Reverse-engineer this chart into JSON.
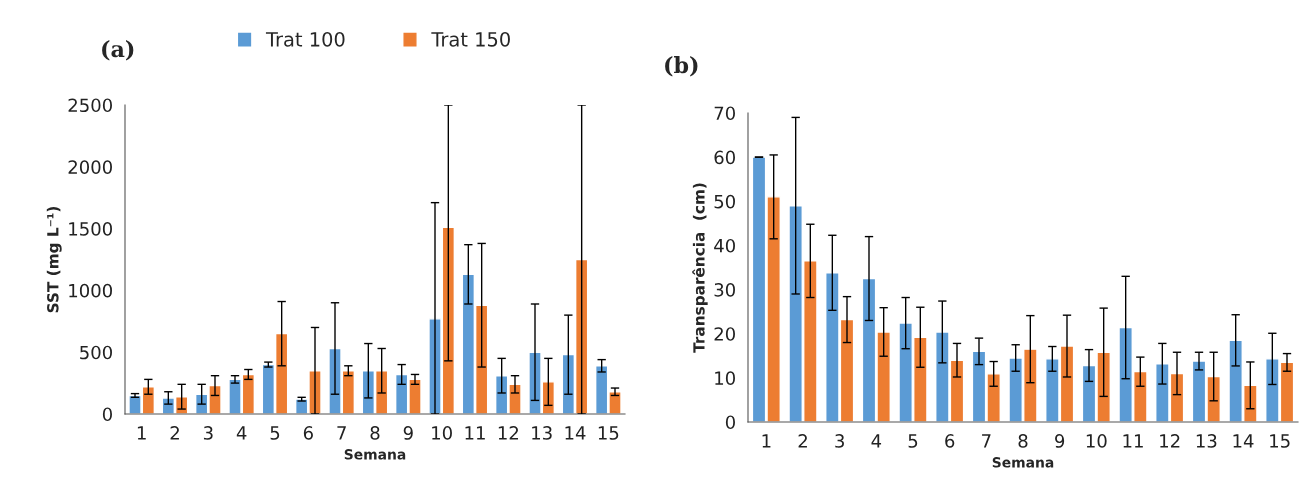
{
  "chart_data": [
    {
      "type": "bar",
      "ylabel": "SST (mg L⁻¹)",
      "xlabel": "Semana",
      "annotations": [
        "(a)"
      ],
      "legend": "top",
      "categories": [
        "1",
        "2",
        "3",
        "4",
        "5",
        "6",
        "7",
        "8",
        "9",
        "10",
        "11",
        "12",
        "13",
        "14",
        "15"
      ],
      "ylim": [
        0,
        2500
      ],
      "yticks": [
        0,
        500,
        1000,
        1500,
        2000,
        2500
      ],
      "series": [
        {
          "name": "Trat 100",
          "color": "#5b9bd5",
          "values": [
            150,
            130,
            160,
            280,
            400,
            120,
            530,
            350,
            320,
            770,
            1130,
            310,
            500,
            480,
            390
          ],
          "errors": [
            15,
            50,
            80,
            30,
            20,
            15,
            370,
            220,
            80,
            [
              0,
              1710
            ],
            240,
            140,
            390,
            320,
            50
          ]
        },
        {
          "name": "Trat 150",
          "color": "#ed7d31",
          "values": [
            220,
            140,
            230,
            320,
            650,
            350,
            350,
            350,
            280,
            1510,
            880,
            240,
            260,
            1250,
            180
          ],
          "errors": [
            60,
            100,
            80,
            40,
            260,
            350,
            40,
            180,
            40,
            [
              430,
              2500
            ],
            500,
            70,
            190,
            [
              0,
              2500
            ],
            30
          ]
        }
      ]
    },
    {
      "type": "bar",
      "ylabel": "Transparência  (cm)",
      "xlabel": "Semana",
      "annotations": [
        "(b)"
      ],
      "categories": [
        "1",
        "2",
        "3",
        "4",
        "5",
        "6",
        "7",
        "8",
        "9",
        "10",
        "11",
        "12",
        "13",
        "14",
        "15"
      ],
      "ylim": [
        0,
        70
      ],
      "yticks": [
        0,
        10,
        20,
        30,
        40,
        50,
        60,
        70
      ],
      "series": [
        {
          "color": "#5b9bd5",
          "values": [
            60,
            49,
            33.8,
            32.5,
            22.4,
            20.4,
            16,
            14.5,
            14.3,
            12.8,
            21.4,
            13.2,
            13.8,
            18.5,
            14.3
          ],
          "errors": [
            null,
            20,
            8.5,
            9.5,
            5.8,
            7,
            3,
            3,
            2.8,
            3.6,
            11.6,
            4.6,
            2,
            5.8,
            5.8
          ]
        },
        {
          "color": "#ed7d31",
          "values": [
            51,
            36.5,
            23.2,
            20.4,
            19.2,
            14,
            10.9,
            16.5,
            17.2,
            15.8,
            11.4,
            11,
            10.3,
            8.3,
            13.5
          ],
          "errors": [
            9.5,
            8.3,
            5.2,
            5.5,
            6.8,
            3.8,
            2.8,
            7.6,
            7,
            10,
            3.3,
            4.8,
            5.5,
            5.3,
            2
          ]
        }
      ]
    }
  ]
}
